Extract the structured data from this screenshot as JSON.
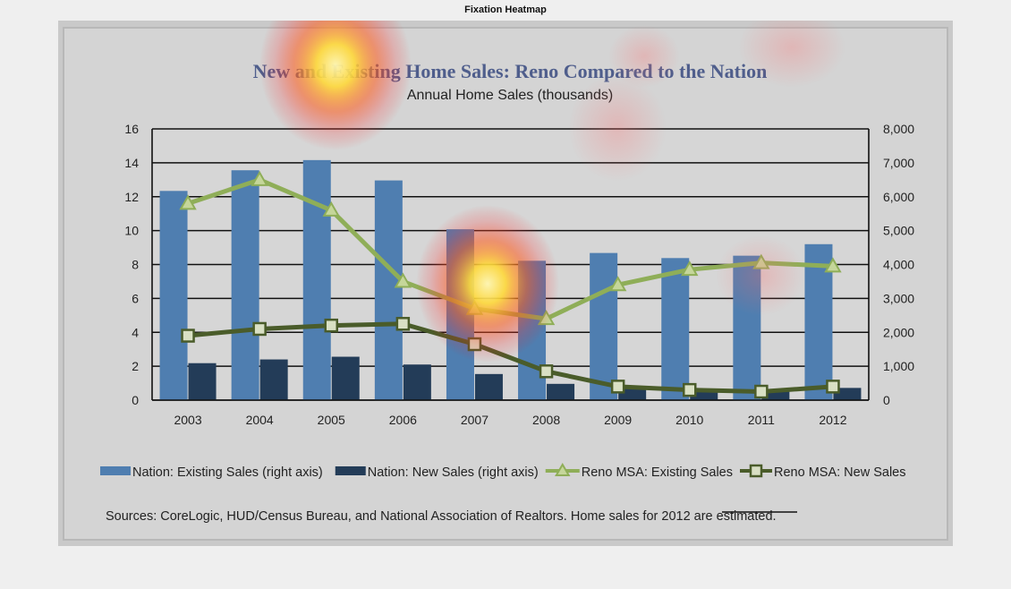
{
  "window": {
    "heading": "Fixation Heatmap"
  },
  "chart_data": {
    "type": "bar",
    "title": "New and Existing Home Sales: Reno Compared to the Nation",
    "subtitle": "Annual Home Sales (thousands)",
    "categories": [
      "2003",
      "2004",
      "2005",
      "2006",
      "2007",
      "2008",
      "2009",
      "2010",
      "2011",
      "2012"
    ],
    "left_axis": {
      "ylim": [
        0,
        16
      ],
      "ticks": [
        "0",
        "2",
        "4",
        "6",
        "8",
        "10",
        "12",
        "14",
        "16"
      ]
    },
    "right_axis": {
      "ylim": [
        0,
        8000
      ],
      "ticks": [
        "0",
        "1,000",
        "2,000",
        "3,000",
        "4,000",
        "5,000",
        "6,000",
        "7,000",
        "8,000"
      ]
    },
    "series": [
      {
        "name": "Nation: Existing Sales (right axis)",
        "type": "bar",
        "axis": "right",
        "values": [
          6170,
          6780,
          7080,
          6480,
          5040,
          4110,
          4340,
          4190,
          4260,
          4600
        ]
      },
      {
        "name": "Nation: New Sales (right axis)",
        "type": "bar",
        "axis": "right",
        "values": [
          1090,
          1200,
          1280,
          1050,
          770,
          480,
          370,
          320,
          300,
          360
        ]
      },
      {
        "name": "Reno MSA: Existing Sales",
        "type": "line",
        "axis": "left",
        "marker": "triangle",
        "values": [
          11.6,
          13.0,
          11.2,
          7.0,
          5.4,
          4.8,
          6.8,
          7.7,
          8.1,
          7.9
        ]
      },
      {
        "name": "Reno MSA: New Sales",
        "type": "line",
        "axis": "left",
        "marker": "square",
        "values": [
          3.8,
          4.2,
          4.4,
          4.5,
          3.3,
          1.7,
          0.8,
          0.6,
          0.5,
          0.8
        ]
      }
    ],
    "source_note": "Sources: CoreLogic, HUD/Census  Bureau, and National Association of Realtors. Home sales for 2012 are estimated.",
    "grid": true,
    "legend_position": "bottom",
    "colors": {
      "bar_existing": "#4f7eb0",
      "bar_new": "#233c58",
      "line_existing": "#8fae58",
      "line_new": "#4a5c2a",
      "title": "#4f5e8c"
    }
  }
}
